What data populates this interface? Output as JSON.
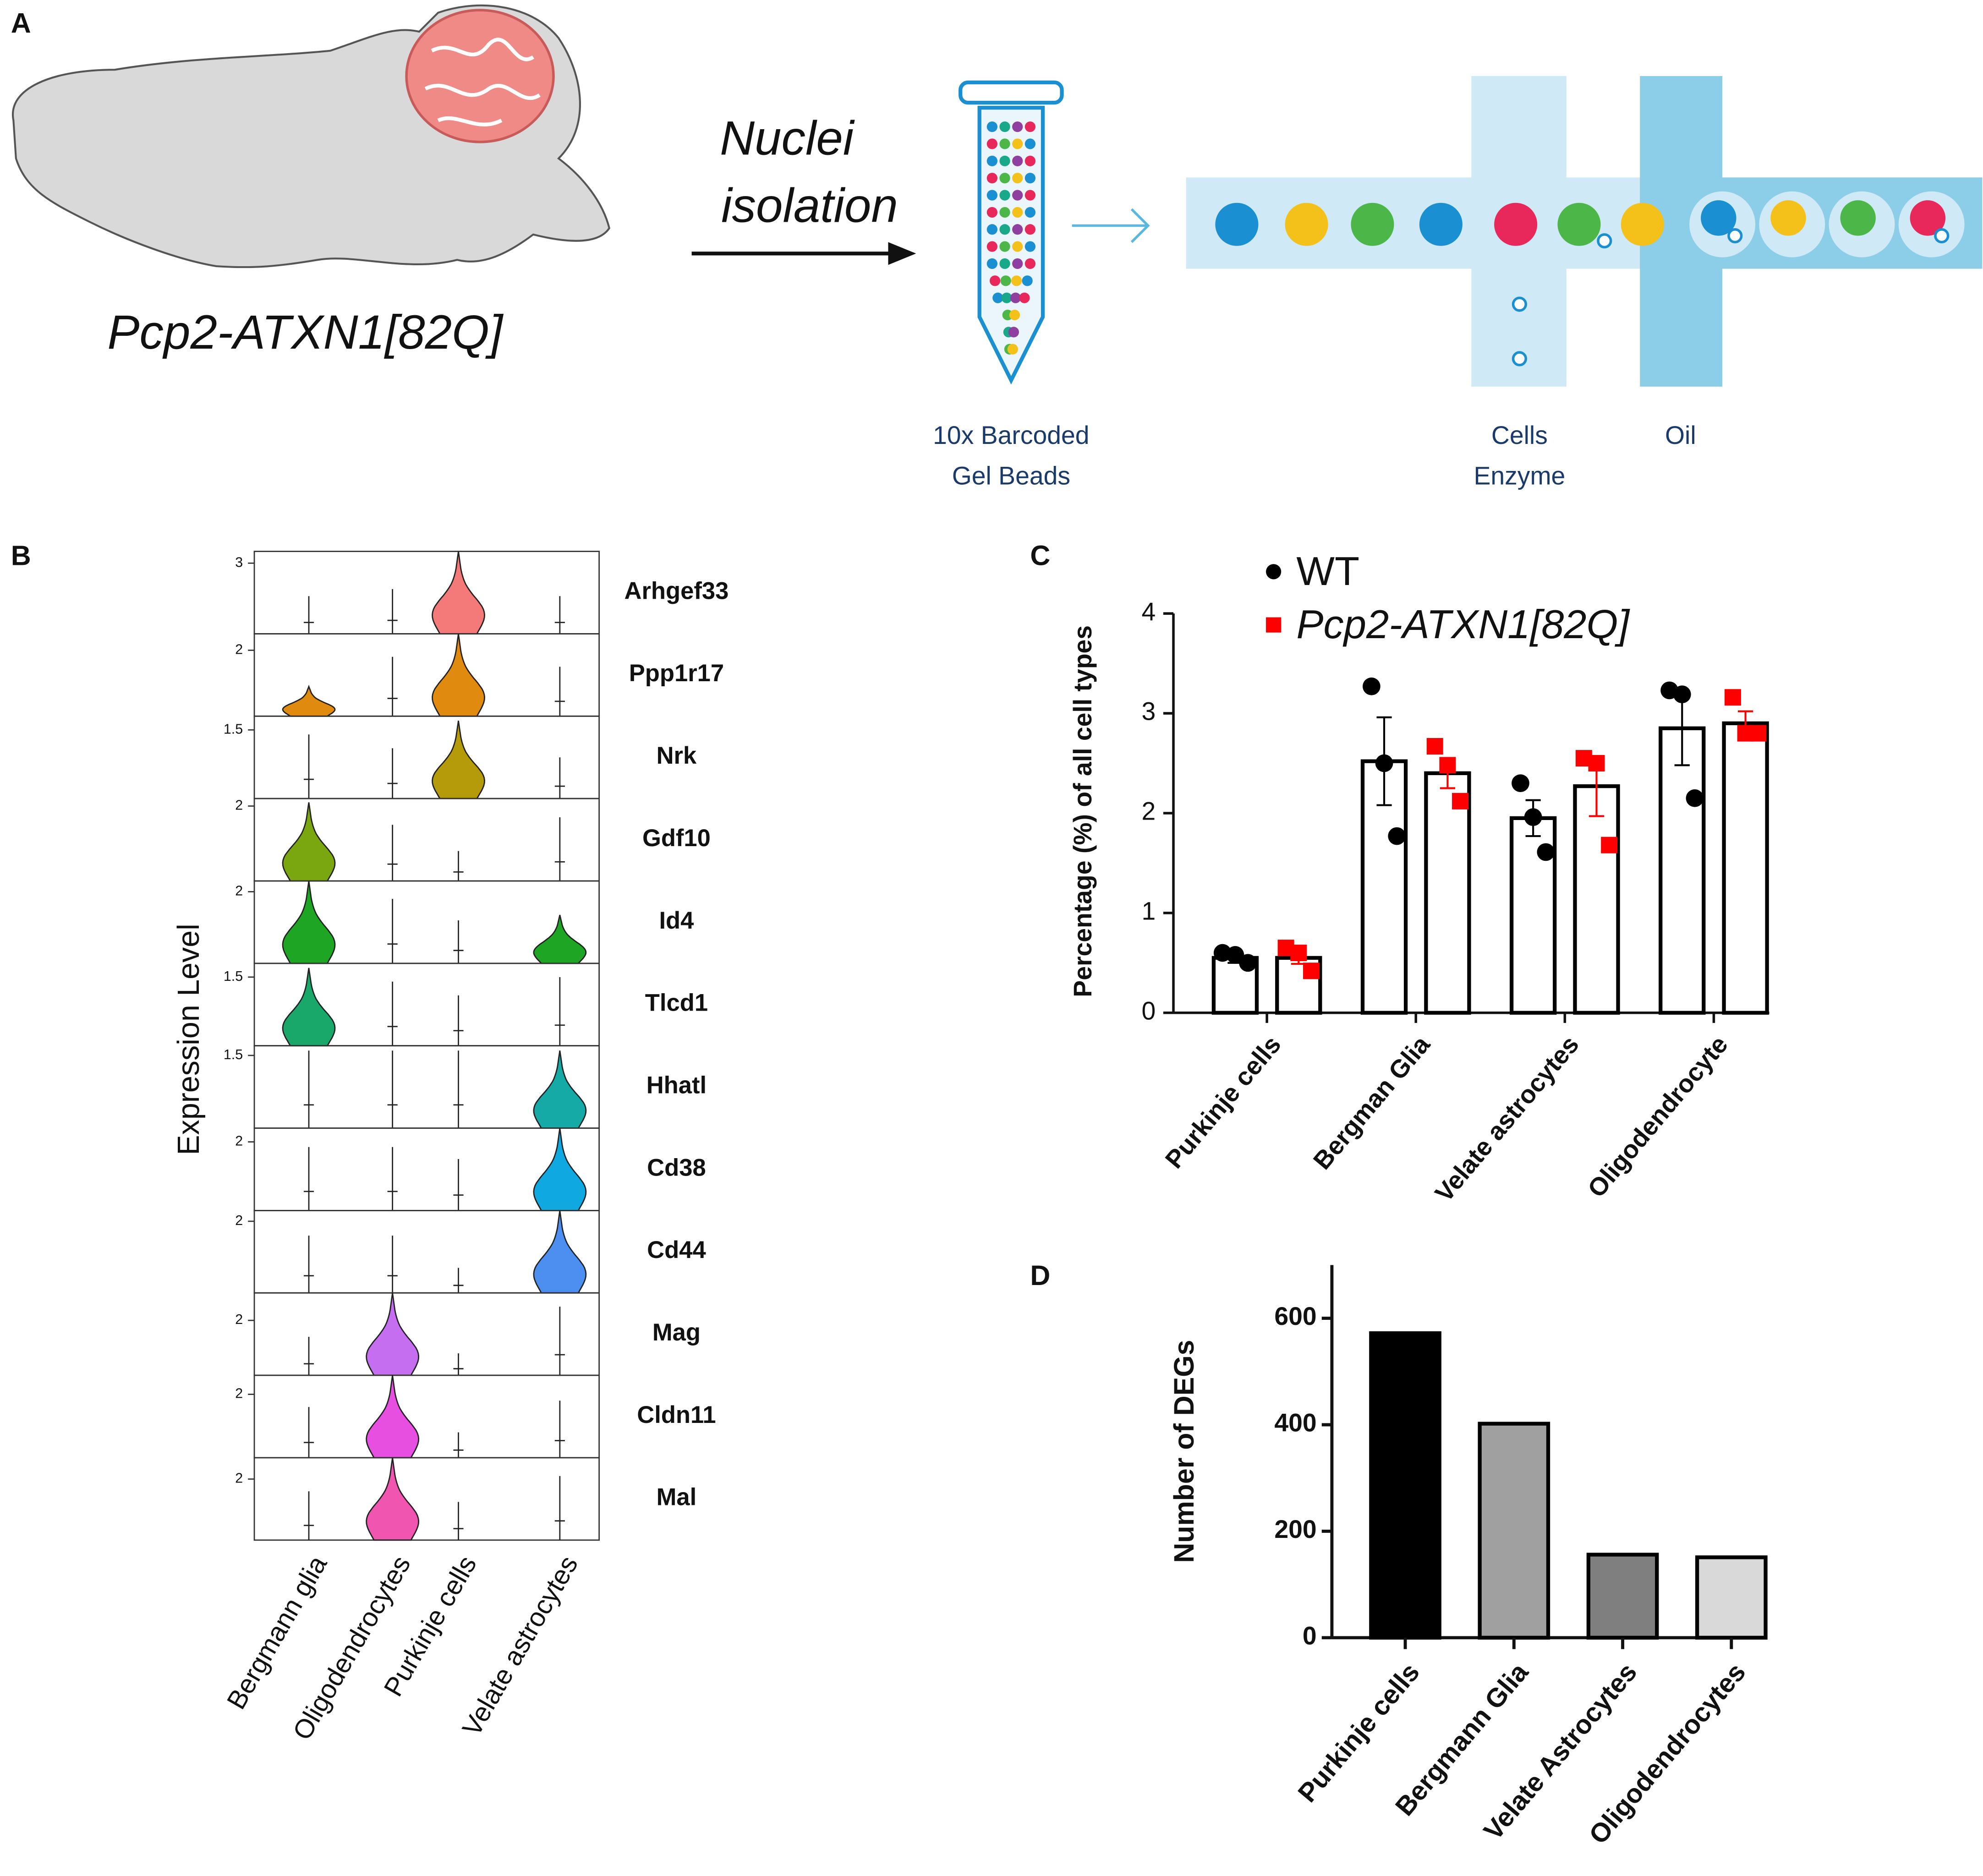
{
  "diagram": {
    "label": "A",
    "mouse": "Pcp2-ATXN1[82Q]",
    "arrow_lines": [
      "Nuclei",
      "isolation"
    ],
    "tube_lines": [
      "10x Barcoded",
      "Gel Beads"
    ],
    "cells_lines": [
      "Cells",
      "Enzyme"
    ],
    "oil": "Oil"
  },
  "chart_data": [
    {
      "type": "violin",
      "label": "B",
      "ylabel": "Expression Level",
      "categories": [
        "Bergmann glia",
        "Oligodendrocytes",
        "Purkinje cells",
        "Velate astrocytes"
      ],
      "rows": [
        {
          "name": "Arhgef33",
          "color": "#f47a7a",
          "ylim": [
            0,
            3.5
          ],
          "yticks": [
            3
          ],
          "values": [
            1.6,
            1.9,
            3.5,
            1.6
          ],
          "highlight": [
            2
          ]
        },
        {
          "name": "Ppp1r17",
          "color": "#e08a10",
          "ylim": [
            0,
            2.5
          ],
          "yticks": [
            2
          ],
          "values": [
            0.9,
            1.8,
            2.5,
            1.5
          ],
          "highlight": [
            0,
            2
          ]
        },
        {
          "name": "Nrk",
          "color": "#b59a0a",
          "ylim": [
            0,
            1.8
          ],
          "yticks": [
            1.5
          ],
          "values": [
            1.4,
            1.1,
            1.7,
            0.9
          ],
          "highlight": [
            2
          ]
        },
        {
          "name": "Gdf10",
          "color": "#7aa60f",
          "ylim": [
            0,
            2.2
          ],
          "yticks": [
            2
          ],
          "values": [
            2.1,
            1.5,
            0.8,
            1.7
          ],
          "highlight": [
            0
          ]
        },
        {
          "name": "Id4",
          "color": "#1fa524",
          "ylim": [
            0,
            2.3
          ],
          "yticks": [
            2
          ],
          "values": [
            2.3,
            1.8,
            1.2,
            1.35
          ],
          "highlight": [
            0,
            3
          ]
        },
        {
          "name": "Tlcd1",
          "color": "#19a86a",
          "ylim": [
            0,
            1.8
          ],
          "yticks": [
            1.5
          ],
          "values": [
            1.7,
            1.4,
            1.1,
            1.5
          ],
          "highlight": [
            0
          ]
        },
        {
          "name": "Hhatl",
          "color": "#15aaa6",
          "ylim": [
            0,
            1.7
          ],
          "yticks": [
            1.5
          ],
          "values": [
            1.6,
            1.6,
            1.6,
            1.6
          ],
          "highlight": [
            3
          ]
        },
        {
          "name": "Cd38",
          "color": "#0fa8e0",
          "ylim": [
            0,
            2.4
          ],
          "yticks": [
            2
          ],
          "values": [
            1.85,
            1.85,
            1.5,
            2.4
          ],
          "highlight": [
            3
          ]
        },
        {
          "name": "Cd44",
          "color": "#4d8ff0",
          "ylim": [
            0,
            2.3
          ],
          "yticks": [
            2
          ],
          "values": [
            1.6,
            1.6,
            0.7,
            2.3
          ],
          "highlight": [
            3
          ]
        },
        {
          "name": "Mag",
          "color": "#c56ff0",
          "ylim": [
            0,
            3
          ],
          "yticks": [
            2
          ],
          "values": [
            1.4,
            3,
            0.8,
            2.5
          ],
          "highlight": [
            1
          ]
        },
        {
          "name": "Cldn11",
          "color": "#e64fe0",
          "ylim": [
            0,
            2.6
          ],
          "yticks": [
            2
          ],
          "values": [
            1.6,
            2.6,
            0.8,
            1.8
          ],
          "highlight": [
            1
          ]
        },
        {
          "name": "Mal",
          "color": "#f055b0",
          "ylim": [
            0,
            2.7
          ],
          "yticks": [
            2
          ],
          "values": [
            1.6,
            2.7,
            1.25,
            2.1
          ],
          "highlight": [
            1
          ]
        }
      ]
    },
    {
      "type": "bar_dot",
      "label": "C",
      "ylabel": "Percentage (%) of all cell types",
      "categories": [
        "Purkinje cells",
        "Bergman Glia",
        "Velate astrocytes",
        "Oligodendrocyte"
      ],
      "ylim": [
        0,
        4
      ],
      "yticks": [
        0,
        1,
        2,
        3,
        4
      ],
      "series": [
        {
          "name": "WT",
          "color": "#000000",
          "marker": "circle",
          "font_style": "normal",
          "values": [
            0.55,
            2.52,
            1.95,
            2.85
          ],
          "errors": [
            0.05,
            0.44,
            0.18,
            0.37
          ],
          "points": [
            [
              0.6,
              0.58,
              0.5
            ],
            [
              3.27,
              2.5,
              1.77
            ],
            [
              2.3,
              1.96,
              1.61
            ],
            [
              3.23,
              3.19,
              2.15
            ]
          ]
        },
        {
          "name": "Pcp2-ATXN1[82Q]",
          "color": "#ff0000",
          "marker": "square",
          "font_style": "italic",
          "values": [
            0.55,
            2.4,
            2.27,
            2.9
          ],
          "errors": [
            0.06,
            0.15,
            0.3,
            0.12
          ],
          "points": [
            [
              0.65,
              0.6,
              0.42
            ],
            [
              2.67,
              2.48,
              2.12
            ],
            [
              2.55,
              2.5,
              1.68
            ],
            [
              3.16,
              2.8,
              2.8
            ]
          ]
        }
      ]
    },
    {
      "type": "bar",
      "label": "D",
      "ylabel": "Number of DEGs",
      "categories": [
        "Purkinje cells",
        "Bergmann Glia",
        "Velate Astrocytes",
        "Oligodendrocytes"
      ],
      "values": [
        572,
        402,
        156,
        151
      ],
      "colors": [
        "#000000",
        "#a0a0a0",
        "#7f7f7f",
        "#d9d9d9"
      ],
      "ylim": [
        0,
        700
      ],
      "yticks": [
        0,
        200,
        400,
        600
      ]
    }
  ]
}
